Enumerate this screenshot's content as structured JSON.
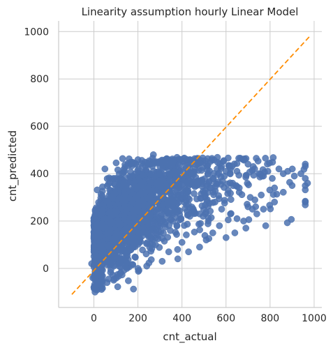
{
  "chart_data": {
    "type": "scatter",
    "title": "Linearity assumption hourly Linear Model",
    "xlabel": "cnt_actual",
    "ylabel": "cnt_predicted",
    "xlim": [
      -160,
      1035
    ],
    "ylim": [
      -165,
      1045
    ],
    "xticks": [
      0,
      200,
      400,
      600,
      800,
      1000
    ],
    "yticks": [
      0,
      200,
      400,
      600,
      800,
      1000
    ],
    "grid": true,
    "colors": {
      "points": "#4c72b0",
      "reference_line": "#ff8c00",
      "grid": "#cccccc",
      "axis": "#cccccc"
    },
    "reference_line": {
      "label": "",
      "from": [
        -100,
        -110
      ],
      "to": [
        980,
        980
      ]
    },
    "outliers": [
      [
        270,
        480
      ],
      [
        390,
        380
      ],
      [
        410,
        390
      ],
      [
        440,
        400
      ],
      [
        460,
        420
      ],
      [
        470,
        440
      ],
      [
        510,
        440
      ],
      [
        560,
        420
      ],
      [
        580,
        430
      ],
      [
        600,
        410
      ],
      [
        620,
        420
      ],
      [
        650,
        410
      ],
      [
        680,
        460
      ],
      [
        700,
        440
      ],
      [
        730,
        420
      ],
      [
        750,
        400
      ],
      [
        770,
        390
      ],
      [
        790,
        410
      ],
      [
        810,
        380
      ],
      [
        840,
        420
      ],
      [
        860,
        400
      ],
      [
        880,
        410
      ],
      [
        910,
        390
      ],
      [
        940,
        400
      ],
      [
        970,
        360
      ],
      [
        960,
        380
      ],
      [
        900,
        350
      ],
      [
        820,
        340
      ],
      [
        760,
        310
      ],
      [
        740,
        230
      ],
      [
        720,
        250
      ],
      [
        700,
        260
      ],
      [
        690,
        170
      ],
      [
        680,
        200
      ],
      [
        650,
        210
      ],
      [
        640,
        150
      ],
      [
        600,
        130
      ],
      [
        570,
        180
      ],
      [
        540,
        150
      ],
      [
        510,
        120
      ],
      [
        480,
        90
      ],
      [
        430,
        70
      ],
      [
        400,
        110
      ],
      [
        380,
        80
      ],
      [
        340,
        70
      ],
      [
        310,
        30
      ],
      [
        280,
        100
      ],
      [
        240,
        10
      ],
      [
        200,
        0
      ],
      [
        150,
        0
      ],
      [
        120,
        -20
      ],
      [
        90,
        -50
      ],
      [
        60,
        -60
      ],
      [
        30,
        -70
      ],
      [
        10,
        -90
      ],
      [
        5,
        -100
      ],
      [
        0,
        -80
      ],
      [
        -5,
        -40
      ],
      [
        -10,
        20
      ],
      [
        50,
        420
      ],
      [
        100,
        380
      ],
      [
        140,
        410
      ],
      [
        190,
        440
      ],
      [
        220,
        430
      ],
      [
        250,
        440
      ],
      [
        300,
        430
      ],
      [
        330,
        440
      ],
      [
        360,
        450
      ],
      [
        480,
        230
      ],
      [
        520,
        200
      ],
      [
        550,
        280
      ],
      [
        610,
        330
      ],
      [
        630,
        360
      ],
      [
        660,
        340
      ],
      [
        710,
        300
      ],
      [
        770,
        250
      ],
      [
        780,
        180
      ],
      [
        820,
        280
      ],
      [
        620,
        230
      ],
      [
        580,
        250
      ]
    ]
  }
}
